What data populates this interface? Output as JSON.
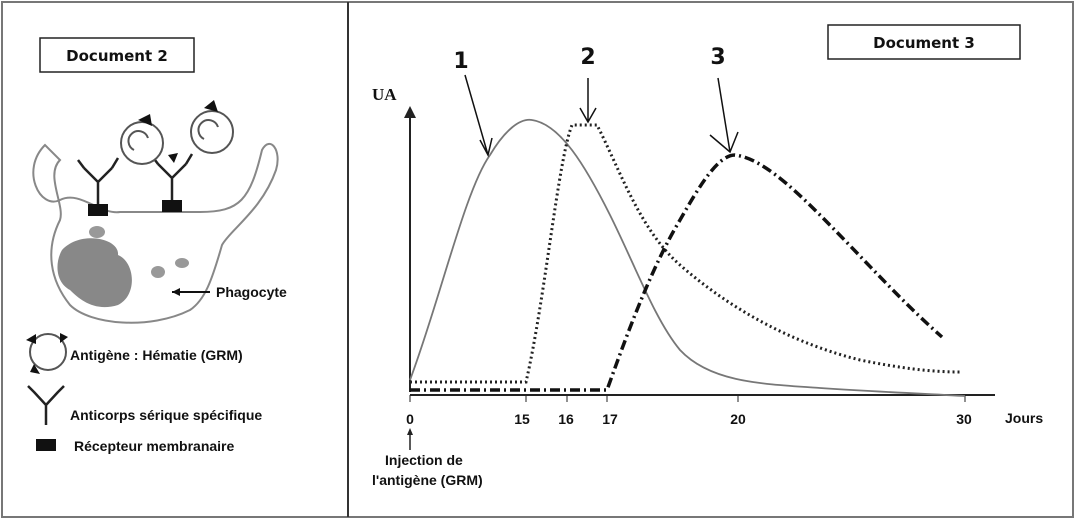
{
  "document_2": {
    "title": "Document 2",
    "phagocyte_label": "Phagocyte",
    "legend": [
      "Antigène : Hématie (GRM)",
      "Anticorps sérique spécifique",
      "Récepteur membranaire"
    ]
  },
  "document_3": {
    "title": "Document 3",
    "y_axis_label": "UA",
    "x_axis_label": "Jours",
    "x_ticks": [
      "0",
      "15",
      "16",
      "17",
      "20",
      "30"
    ],
    "curve_labels": [
      "1",
      "2",
      "3"
    ],
    "annotation": [
      "Injection de",
      "l'antigène (GRM)"
    ]
  }
}
